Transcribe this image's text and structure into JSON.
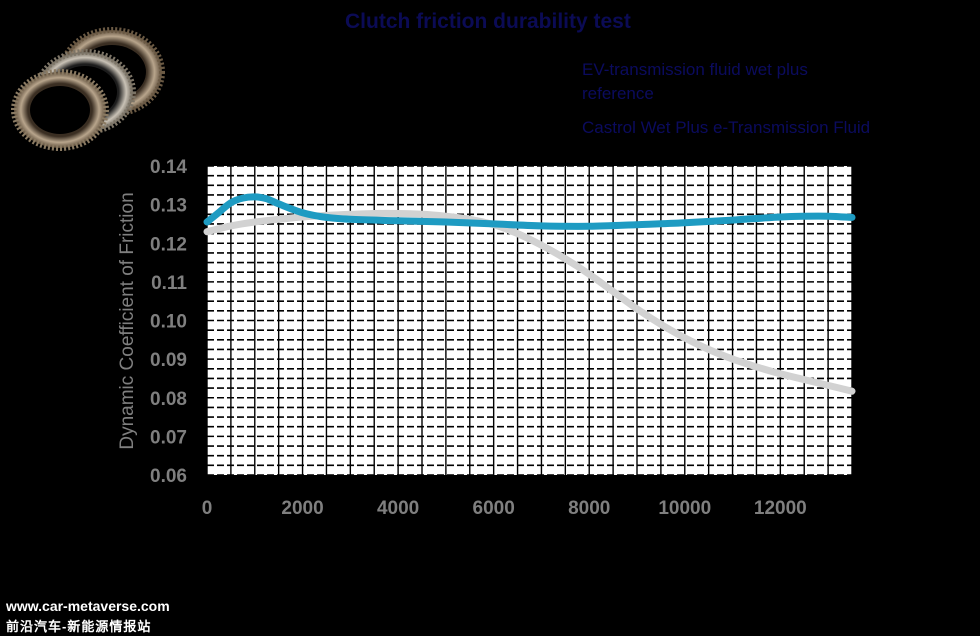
{
  "chart_data": {
    "type": "line",
    "title": "Clutch friction durability test",
    "xlabel": "",
    "ylabel": "Dynamic Coefficient of Friction",
    "xlim": [
      0,
      13500
    ],
    "ylim": [
      0.06,
      0.14
    ],
    "x_ticks": [
      "0",
      "2000",
      "4000",
      "6000",
      "8000",
      "10000",
      "12000"
    ],
    "y_ticks": [
      "0.14",
      "0.13",
      "0.12",
      "0.11",
      "0.10",
      "0.09",
      "0.08",
      "0.07",
      "0.06"
    ],
    "grid": true,
    "legend_position": "top-right",
    "series": [
      {
        "name": "EV-transmission fluid wet plus reference",
        "color": "#d2d2d2",
        "x": [
          0,
          500,
          1000,
          1500,
          2000,
          2500,
          3000,
          3500,
          4000,
          4500,
          5000,
          5500,
          6000,
          6500,
          7000,
          7500,
          8000,
          8500,
          9000,
          9500,
          10000,
          10500,
          11000,
          11500,
          12000,
          12500,
          13000,
          13500
        ],
        "y": [
          0.123,
          0.1245,
          0.1255,
          0.1262,
          0.1268,
          0.1272,
          0.1275,
          0.1277,
          0.1277,
          0.1275,
          0.127,
          0.1262,
          0.1248,
          0.1225,
          0.1195,
          0.116,
          0.112,
          0.1075,
          0.103,
          0.099,
          0.0955,
          0.0925,
          0.09,
          0.088,
          0.0862,
          0.0847,
          0.0832,
          0.0817
        ]
      },
      {
        "name": "Castrol Wet Plus e-Transmission Fluid",
        "color": "#1e9bc2",
        "x": [
          0,
          250,
          500,
          750,
          1000,
          1250,
          1500,
          2000,
          2500,
          3000,
          4000,
          5000,
          6000,
          7000,
          8000,
          9000,
          10000,
          11000,
          12000,
          12500,
          13000,
          13500
        ],
        "y": [
          0.1255,
          0.128,
          0.1305,
          0.1317,
          0.132,
          0.1315,
          0.1302,
          0.1279,
          0.1267,
          0.1262,
          0.1258,
          0.1255,
          0.125,
          0.1245,
          0.1244,
          0.1248,
          0.1253,
          0.126,
          0.1268,
          0.127,
          0.127,
          0.1267
        ]
      }
    ]
  },
  "watermark": {
    "line1": "www.car-metaverse.com",
    "line2": "前沿汽车-新能源情报站"
  },
  "image": {
    "icon": "clutch-plates-icon"
  }
}
